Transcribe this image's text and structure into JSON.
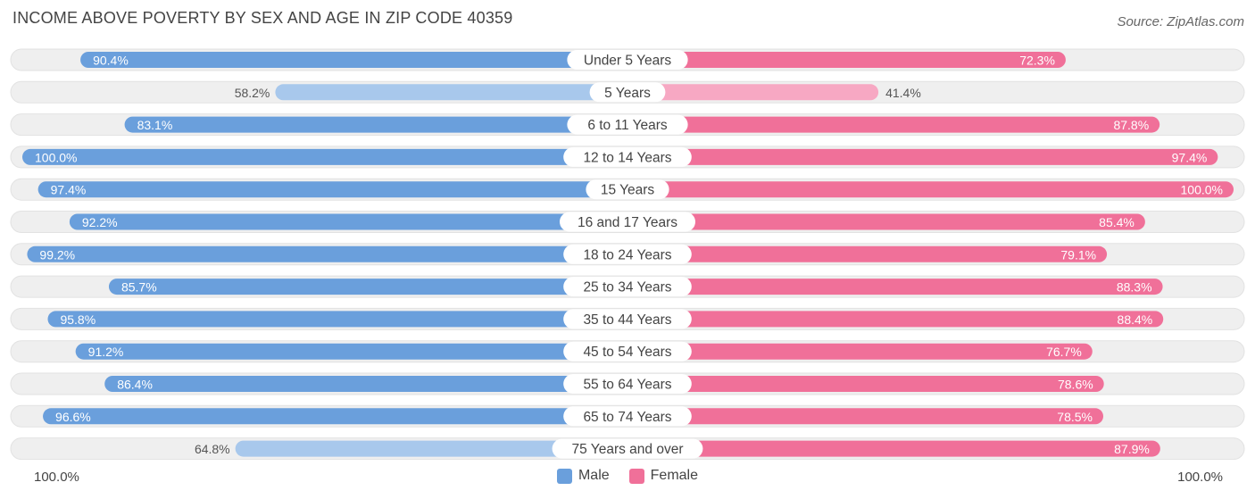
{
  "title": "INCOME ABOVE POVERTY BY SEX AND AGE IN ZIP CODE 40359",
  "source": "Source: ZipAtlas.com",
  "colors": {
    "male_strong": "#6a9fdc",
    "male_light": "#a8c8ec",
    "female_strong": "#f07099",
    "female_light": "#f7a8c3",
    "track": "#efefef"
  },
  "chart_data": {
    "type": "bar",
    "orientation": "horizontal-diverging",
    "title": "INCOME ABOVE POVERTY BY SEX AND AGE IN ZIP CODE 40359",
    "categories": [
      "Under 5 Years",
      "5 Years",
      "6 to 11 Years",
      "12 to 14 Years",
      "15 Years",
      "16 and 17 Years",
      "18 to 24 Years",
      "25 to 34 Years",
      "35 to 44 Years",
      "45 to 54 Years",
      "55 to 64 Years",
      "65 to 74 Years",
      "75 Years and over"
    ],
    "series": [
      {
        "name": "Male",
        "values": [
          90.4,
          58.2,
          83.1,
          100.0,
          97.4,
          92.2,
          99.2,
          85.7,
          95.8,
          91.2,
          86.4,
          96.6,
          64.8
        ]
      },
      {
        "name": "Female",
        "values": [
          72.3,
          41.4,
          87.8,
          97.4,
          100.0,
          85.4,
          79.1,
          88.3,
          88.4,
          76.7,
          78.6,
          78.5,
          87.9
        ]
      }
    ],
    "value_labels": {
      "male": [
        "90.4%",
        "58.2%",
        "83.1%",
        "100.0%",
        "97.4%",
        "92.2%",
        "99.2%",
        "85.7%",
        "95.8%",
        "91.2%",
        "86.4%",
        "96.6%",
        "64.8%"
      ],
      "female": [
        "72.3%",
        "41.4%",
        "87.8%",
        "97.4%",
        "100.0%",
        "85.4%",
        "79.1%",
        "88.3%",
        "88.4%",
        "76.7%",
        "78.6%",
        "78.5%",
        "87.9%"
      ]
    },
    "xlim": [
      0,
      100
    ],
    "axis_left_label": "100.0%",
    "axis_right_label": "100.0%",
    "legend": {
      "position": "bottom-center",
      "entries": [
        "Male",
        "Female"
      ]
    }
  }
}
